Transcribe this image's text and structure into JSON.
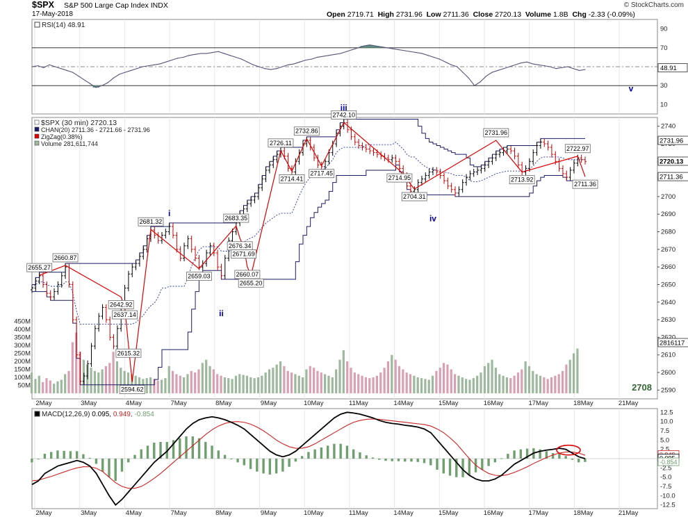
{
  "header": {
    "symbol": "$SPX",
    "name": "S&P 500 Large Cap Index",
    "exchange": "INDX",
    "date": "17-May-2018",
    "watermark": "© StockCharts.com",
    "open_label": "Open",
    "open": "2719.71",
    "high_label": "High",
    "high": "2731.96",
    "low_label": "Low",
    "low": "2711.36",
    "close_label": "Close",
    "close": "2720.13",
    "volume_label": "Volume",
    "volume": "1.8B",
    "chg_label": "Chg",
    "chg": "-2.33 (-0.09%)"
  },
  "colors": {
    "price_up": "#000000",
    "price_down": "#cc0000",
    "channel": "#1a1a66",
    "midline": "#2233aa",
    "zigzag": "#dd0000",
    "volume_up": "#9db89d",
    "volume_down": "#d9a0b4",
    "rsi_line": "#555577",
    "rsi_fill": "#5f8f7f",
    "macd_line": "#000000",
    "signal_line": "#cc2222",
    "histogram": "#6f9f6f",
    "wave_label": "#0000aa",
    "annotation_circle": "#dd0000",
    "target_label": "#336633"
  },
  "chart_data": [
    {
      "type": "line",
      "panel": "rsi",
      "legend": "RSI(14) 48.91",
      "value_badge": "48.91",
      "ylim": [
        0,
        100
      ],
      "y_ticks": [
        90,
        70,
        50,
        30,
        10
      ],
      "reference_lines": [
        70,
        30
      ],
      "series": [
        {
          "name": "RSI(14)",
          "values": [
            50,
            51,
            49,
            52,
            50,
            48,
            46,
            44,
            40,
            36,
            32,
            28,
            30,
            33,
            38,
            42,
            44,
            46,
            48,
            50,
            51,
            52,
            53,
            55,
            57,
            59,
            60,
            62,
            63,
            64,
            64,
            65,
            66,
            64,
            62,
            60,
            58,
            55,
            52,
            50,
            48,
            47,
            48,
            50,
            52,
            53,
            55,
            57,
            58,
            60,
            61,
            62,
            63,
            64,
            66,
            68,
            70,
            72,
            73,
            72,
            71,
            70,
            69,
            68,
            67,
            66,
            65,
            64,
            62,
            60,
            58,
            55,
            52,
            50,
            44,
            38,
            30,
            34,
            40,
            44,
            46,
            48,
            50,
            52,
            54,
            55,
            53,
            52,
            51,
            50,
            48,
            49,
            50,
            48,
            46,
            47
          ]
        }
      ],
      "x_labels": [
        "2May",
        "3May",
        "4May",
        "7May",
        "8May",
        "9May",
        "10May",
        "11May",
        "14May",
        "15May",
        "16May",
        "17May",
        "18May",
        "21May"
      ]
    },
    {
      "type": "line",
      "panel": "price",
      "title": "$SPX (30 min) 2720.13",
      "legend": [
        "$SPX (30 min) 2720.13",
        "CHAN(20) 2711.36 - 2721.66 - 2731.96",
        "ZigZag(0.38%)",
        "Volume 281,611,744"
      ],
      "ylim": [
        2585,
        2745
      ],
      "y_ticks": [
        2740,
        2730,
        2720,
        2710,
        2700,
        2690,
        2680,
        2670,
        2660,
        2650,
        2640,
        2630,
        2620,
        2610,
        2600,
        2590
      ],
      "right_badges": [
        "2731.96",
        "2720.13",
        "2711.36",
        "2816117"
      ],
      "price_axis_badges": [
        2731.96,
        2720.13,
        2711.36
      ],
      "x_labels": [
        "2May",
        "3May",
        "4May",
        "7May",
        "8May",
        "9May",
        "10May",
        "11May",
        "14May",
        "15May",
        "16May",
        "17May",
        "18May",
        "21May"
      ],
      "close": [
        2648,
        2652,
        2655,
        2650,
        2645,
        2643,
        2646,
        2650,
        2655,
        2660,
        2650,
        2630,
        2610,
        2595,
        2598,
        2605,
        2615,
        2625,
        2632,
        2637,
        2630,
        2620,
        2615,
        2625,
        2638,
        2648,
        2656,
        2660,
        2662,
        2666,
        2670,
        2676,
        2681,
        2678,
        2675,
        2678,
        2680,
        2683,
        2678,
        2670,
        2665,
        2672,
        2676,
        2670,
        2665,
        2660,
        2662,
        2668,
        2672,
        2668,
        2660,
        2655,
        2665,
        2675,
        2680,
        2685,
        2690,
        2693,
        2696,
        2698,
        2700,
        2705,
        2710,
        2715,
        2718,
        2721,
        2724,
        2726,
        2723,
        2716,
        2714,
        2720,
        2725,
        2730,
        2732,
        2728,
        2722,
        2718,
        2717,
        2720,
        2725,
        2730,
        2736,
        2740,
        2742,
        2738,
        2734,
        2731,
        2729,
        2728,
        2727,
        2726,
        2725,
        2724,
        2723,
        2722,
        2721,
        2722,
        2720,
        2716,
        2712,
        2706,
        2703,
        2704,
        2708,
        2710,
        2712,
        2714,
        2715,
        2714,
        2712,
        2709,
        2706,
        2704,
        2702,
        2704,
        2708,
        2711,
        2713,
        2714,
        2715,
        2716,
        2718,
        2720,
        2722,
        2724,
        2725,
        2726,
        2727,
        2726,
        2723,
        2718,
        2714,
        2716,
        2720,
        2725,
        2729,
        2731,
        2730,
        2728,
        2724,
        2720,
        2716,
        2713,
        2711,
        2715,
        2719,
        2722,
        2721,
        2720
      ],
      "volume_millions": [
        130,
        90,
        110,
        70,
        95,
        80,
        60,
        75,
        85,
        120,
        140,
        320,
        380,
        260,
        210,
        180,
        160,
        140,
        130,
        150,
        170,
        190,
        260,
        200,
        160,
        140,
        130,
        120,
        110,
        100,
        90,
        95,
        100,
        90,
        80,
        85,
        95,
        170,
        140,
        120,
        110,
        100,
        120,
        140,
        130,
        150,
        190,
        210,
        170,
        150,
        120,
        110,
        100,
        95,
        90,
        110,
        120,
        115,
        110,
        100,
        95,
        100,
        110,
        130,
        150,
        160,
        180,
        200,
        170,
        140,
        130,
        120,
        110,
        100,
        150,
        170,
        160,
        140,
        130,
        120,
        110,
        100,
        150,
        210,
        270,
        200,
        160,
        130,
        120,
        110,
        100,
        95,
        100,
        110,
        130,
        160,
        200,
        240,
        210,
        170,
        150,
        130,
        120,
        110,
        100,
        95,
        90,
        85,
        110,
        140,
        160,
        190,
        180,
        150,
        120,
        110,
        100,
        90,
        85,
        95,
        110,
        130,
        170,
        190,
        210,
        160,
        120,
        110,
        100,
        95,
        110,
        130,
        150,
        200,
        170,
        140,
        120,
        110,
        100,
        90,
        100,
        110,
        120,
        140,
        180,
        210,
        250,
        280
      ],
      "y2_ticks_volume": [
        "450M",
        "400M",
        "350M",
        "300M",
        "250M",
        "200M",
        "150M",
        "100M",
        "50M"
      ],
      "price_labels": [
        {
          "text": "2655.27",
          "value": 2655.27
        },
        {
          "text": "2660.87",
          "value": 2660.87
        },
        {
          "text": "2642.92",
          "value": 2642.92
        },
        {
          "text": "2637.14",
          "value": 2637.14
        },
        {
          "text": "2615.32",
          "value": 2615.32
        },
        {
          "text": "2594.62",
          "value": 2594.62
        },
        {
          "text": "2681.32",
          "value": 2681.32
        },
        {
          "text": "2659.03",
          "value": 2659.03
        },
        {
          "text": "2683.35",
          "value": 2683.35
        },
        {
          "text": "2676.34",
          "value": 2676.34
        },
        {
          "text": "2671.69",
          "value": 2671.69
        },
        {
          "text": "2660.07",
          "value": 2660.07
        },
        {
          "text": "2655.20",
          "value": 2655.2
        },
        {
          "text": "2726.11",
          "value": 2726.11
        },
        {
          "text": "2714.41",
          "value": 2714.41
        },
        {
          "text": "2732.86",
          "value": 2732.86
        },
        {
          "text": "2717.45",
          "value": 2717.45
        },
        {
          "text": "2742.10",
          "value": 2742.1
        },
        {
          "text": "2714.95",
          "value": 2714.95
        },
        {
          "text": "2704.31",
          "value": 2704.31
        },
        {
          "text": "2731.96",
          "value": 2731.96
        },
        {
          "text": "2713.92",
          "value": 2713.92
        },
        {
          "text": "2722.97",
          "value": 2722.97
        },
        {
          "text": "2711.36",
          "value": 2711.36
        }
      ],
      "wave_labels": [
        "i",
        "ii",
        "iii",
        "iv",
        "v"
      ],
      "target_label": "2708"
    },
    {
      "type": "line",
      "panel": "macd",
      "legend_prefix": "MACD(12,26,9)",
      "legend_values": [
        "0.095",
        "0.949",
        "-0.854"
      ],
      "value_badges": [
        "0.949",
        "0.095",
        "-0.854"
      ],
      "ylim": [
        -13.5,
        13.5
      ],
      "y_ticks": [
        "12.5",
        "10.0",
        "7.5",
        "5.0",
        "2.5",
        "0.0",
        "-2.5",
        "-5.0",
        "-7.5",
        "-10.0",
        "-12.5"
      ],
      "series": [
        {
          "name": "MACD",
          "values": [
            -7,
            -6,
            -4,
            -3,
            -2,
            -1.5,
            -1,
            -0.5,
            -1,
            -2,
            -4,
            -7,
            -10,
            -12.5,
            -11,
            -9,
            -7,
            -5,
            -3,
            -1,
            0.5,
            2,
            4,
            6,
            8,
            9.5,
            10.5,
            11,
            11.3,
            11,
            10.5,
            9.8,
            9,
            8,
            6.5,
            5,
            3.5,
            2,
            1,
            0.5,
            1,
            2,
            3.5,
            5,
            6.5,
            8,
            9.5,
            11,
            12,
            12.5,
            12.3,
            12,
            11.5,
            11,
            10.3,
            9.8,
            9.5,
            9.3,
            9,
            8.8,
            8.5,
            8,
            7,
            5,
            3,
            1,
            -1,
            -3,
            -4.5,
            -5.5,
            -6,
            -6,
            -5.5,
            -4.5,
            -3,
            -1.5,
            -0.5,
            0.5,
            1.5,
            2,
            2.3,
            2.5,
            2.8,
            2.5,
            1.5,
            0.5,
            0
          ]
        },
        {
          "name": "Signal",
          "values": [
            -6,
            -5.8,
            -5.3,
            -4.8,
            -4.2,
            -3.6,
            -3,
            -2.5,
            -2.2,
            -2.2,
            -2.6,
            -3.5,
            -5,
            -6.5,
            -7.5,
            -8,
            -8,
            -7.5,
            -6.5,
            -5.3,
            -4,
            -2.5,
            -1,
            0.5,
            2,
            3.5,
            5,
            6.5,
            7.8,
            8.8,
            9.5,
            9.9,
            10,
            9.8,
            9.3,
            8.5,
            7.5,
            6.3,
            5,
            4,
            3.2,
            2.8,
            2.8,
            3.2,
            4,
            5,
            6,
            7,
            8,
            9,
            9.8,
            10.3,
            10.6,
            10.7,
            10.6,
            10.4,
            10.2,
            10,
            9.8,
            9.6,
            9.4,
            9.2,
            8.8,
            8,
            7,
            5.6,
            4,
            2,
            0,
            -1.8,
            -3,
            -4,
            -4.5,
            -4.6,
            -4.3,
            -3.7,
            -3,
            -2.2,
            -1.3,
            -0.5,
            0.3,
            1,
            1.5,
            1.8,
            1.8,
            1.5,
            0.9
          ]
        }
      ],
      "histogram": [
        -1,
        -0.2,
        1.3,
        1.8,
        2.2,
        2.1,
        2,
        2,
        1.2,
        0.2,
        -1.4,
        -3.5,
        -5,
        -6,
        -3.5,
        -1,
        1,
        2.5,
        3.5,
        4.3,
        4.5,
        4.5,
        5,
        5.5,
        6,
        6,
        5.5,
        4.5,
        3.5,
        2.2,
        1,
        -0.1,
        -1,
        -1.8,
        -2.8,
        -3.5,
        -4,
        -4.3,
        -4,
        -3.5,
        -2.2,
        -0.8,
        0.7,
        1.8,
        2.5,
        3,
        3.5,
        4,
        4,
        3.5,
        2.5,
        1.7,
        0.9,
        0.3,
        -0.3,
        -0.6,
        -0.7,
        -0.7,
        -0.8,
        -0.8,
        -0.9,
        -1.2,
        -1.8,
        -3,
        -4,
        -4.6,
        -5,
        -5,
        -4.5,
        -3.7,
        -3,
        -2,
        -1,
        0.1,
        1.3,
        2.2,
        2.5,
        2.7,
        2.8,
        2.5,
        2,
        1.5,
        1.3,
        0.7,
        -0.3,
        -1,
        -0.9
      ],
      "x_labels": [
        "2May",
        "3May",
        "4May",
        "7May",
        "8May",
        "9May",
        "10May",
        "11May",
        "14May",
        "15May",
        "16May",
        "17May",
        "18May",
        "21May"
      ]
    }
  ]
}
